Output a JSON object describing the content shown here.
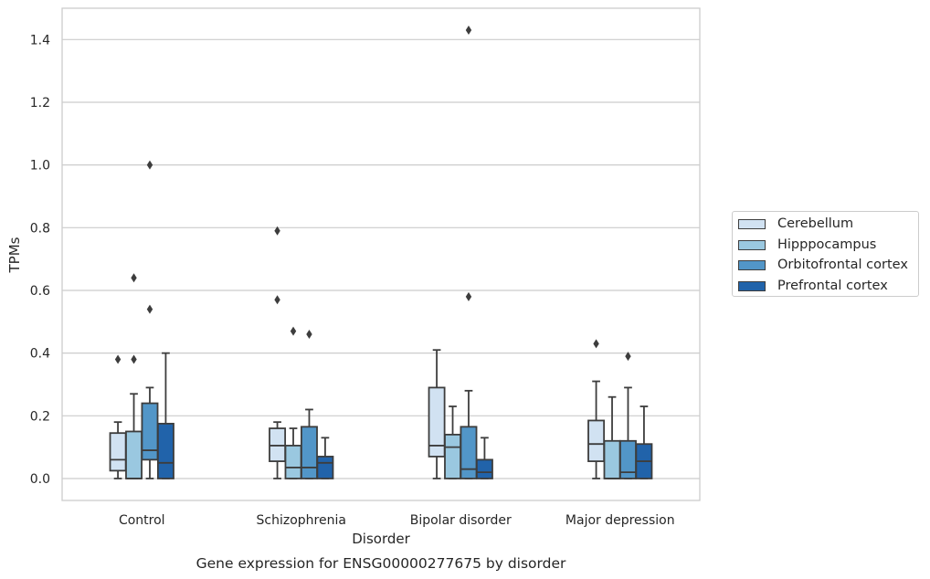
{
  "chart_data": {
    "type": "box",
    "title": "Gene expression for ENSG00000277675 by disorder",
    "xlabel": "Disorder",
    "ylabel": "TPMs",
    "ylim": [
      -0.07,
      1.5
    ],
    "yticks": [
      "0.0",
      "0.2",
      "0.4",
      "0.6",
      "0.8",
      "1.0",
      "1.2",
      "1.4"
    ],
    "grid": "horizontal",
    "legend_position": "right",
    "categories": [
      "Control",
      "Schizophrenia",
      "Bipolar disorder",
      "Major depression"
    ],
    "series": [
      {
        "name": "Cerebellum",
        "color": "#d1e2f2",
        "boxes": [
          {
            "whislo": 0.0,
            "q1": 0.025,
            "med": 0.06,
            "q3": 0.145,
            "whishi": 0.18,
            "fliers": [
              0.38
            ]
          },
          {
            "whislo": 0.0,
            "q1": 0.055,
            "med": 0.105,
            "q3": 0.16,
            "whishi": 0.18,
            "fliers": [
              0.57,
              0.79
            ]
          },
          {
            "whislo": 0.0,
            "q1": 0.07,
            "med": 0.105,
            "q3": 0.29,
            "whishi": 0.41,
            "fliers": []
          },
          {
            "whislo": 0.0,
            "q1": 0.055,
            "med": 0.11,
            "q3": 0.185,
            "whishi": 0.31,
            "fliers": [
              0.43
            ]
          }
        ]
      },
      {
        "name": "Hipppocampus",
        "color": "#9ac8e0",
        "boxes": [
          {
            "whislo": 0.0,
            "q1": 0.0,
            "med": 0.0,
            "q3": 0.15,
            "whishi": 0.27,
            "fliers": [
              0.38,
              0.64
            ]
          },
          {
            "whislo": 0.0,
            "q1": 0.0,
            "med": 0.035,
            "q3": 0.105,
            "whishi": 0.16,
            "fliers": [
              0.47
            ]
          },
          {
            "whislo": 0.0,
            "q1": 0.0,
            "med": 0.1,
            "q3": 0.14,
            "whishi": 0.23,
            "fliers": []
          },
          {
            "whislo": 0.0,
            "q1": 0.0,
            "med": 0.0,
            "q3": 0.12,
            "whishi": 0.26,
            "fliers": []
          }
        ]
      },
      {
        "name": "Orbitofrontal cortex",
        "color": "#5296c8",
        "boxes": [
          {
            "whislo": 0.0,
            "q1": 0.06,
            "med": 0.09,
            "q3": 0.24,
            "whishi": 0.29,
            "fliers": [
              0.54,
              1.0
            ]
          },
          {
            "whislo": 0.0,
            "q1": 0.0,
            "med": 0.035,
            "q3": 0.165,
            "whishi": 0.22,
            "fliers": [
              0.46
            ]
          },
          {
            "whislo": 0.0,
            "q1": 0.0,
            "med": 0.03,
            "q3": 0.165,
            "whishi": 0.28,
            "fliers": [
              0.58,
              1.43
            ]
          },
          {
            "whislo": 0.0,
            "q1": 0.0,
            "med": 0.02,
            "q3": 0.12,
            "whishi": 0.29,
            "fliers": [
              0.39
            ]
          }
        ]
      },
      {
        "name": "Prefrontal cortex",
        "color": "#2163aa",
        "boxes": [
          {
            "whislo": 0.0,
            "q1": 0.0,
            "med": 0.05,
            "q3": 0.175,
            "whishi": 0.4,
            "fliers": []
          },
          {
            "whislo": 0.0,
            "q1": 0.0,
            "med": 0.05,
            "q3": 0.07,
            "whishi": 0.13,
            "fliers": []
          },
          {
            "whislo": 0.0,
            "q1": 0.0,
            "med": 0.02,
            "q3": 0.06,
            "whishi": 0.13,
            "fliers": []
          },
          {
            "whislo": 0.0,
            "q1": 0.0,
            "med": 0.055,
            "q3": 0.11,
            "whishi": 0.23,
            "fliers": []
          }
        ]
      }
    ]
  }
}
